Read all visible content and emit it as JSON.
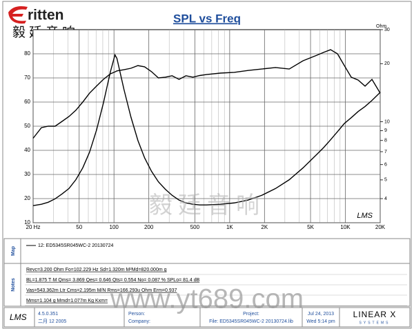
{
  "brand": {
    "name": "ritten",
    "chinese": "毅廷音响"
  },
  "chart_data": {
    "type": "line",
    "title": "SPL vs Freq",
    "y2_unit": "Ohm",
    "plot_logo": "LMS",
    "xscale": "log",
    "y2scale": "log",
    "grid": true,
    "xlim": [
      20,
      20000
    ],
    "xticks": [
      {
        "value": 20,
        "label": "20 Hz"
      },
      50,
      100,
      200,
      500,
      {
        "value": 1000,
        "label": "1K"
      },
      {
        "value": 2000,
        "label": "2K"
      },
      {
        "value": 5000,
        "label": "5K"
      },
      {
        "value": 10000,
        "label": "10K"
      },
      {
        "value": 20000,
        "label": "20K"
      }
    ],
    "xminor": [
      30,
      40,
      60,
      70,
      80,
      90,
      300,
      400,
      600,
      700,
      800,
      900,
      3000,
      4000,
      6000,
      7000,
      8000,
      9000
    ],
    "ylim": [
      10,
      90
    ],
    "yticks": [
      10,
      20,
      30,
      40,
      50,
      60,
      70,
      80
    ],
    "y2lim": [
      3,
      30
    ],
    "y2ticks": [
      4,
      5,
      6,
      7,
      8,
      9,
      10,
      20,
      30
    ],
    "x": [
      20,
      23.6,
      27,
      31,
      35.6,
      40.8,
      46.8,
      53.7,
      61.5,
      70.6,
      81,
      93,
      102,
      106,
      122,
      140,
      161,
      184,
      211,
      242,
      278,
      318,
      365,
      419,
      481,
      551,
      632,
      832,
      1095,
      1440,
      1893,
      2490,
      3274,
      4306,
      5666,
      6500,
      7450,
      8550,
      9800,
      11240,
      12900,
      14800,
      16980,
      20000
    ],
    "series": [
      {
        "color": "#000000",
        "values": [
          45,
          49.4,
          50,
          50,
          52,
          54,
          56.6,
          60,
          63.7,
          66.6,
          69.4,
          71.7,
          72.5,
          72.9,
          73.4,
          74,
          75.1,
          74.6,
          72.6,
          70,
          70.3,
          70.9,
          69.4,
          70.9,
          70.3,
          71,
          71.4,
          72,
          72.3,
          73.1,
          73.7,
          74.3,
          73.7,
          77.1,
          79.4,
          80.6,
          81.7,
          80,
          75.1,
          70.3,
          69.1,
          66.6,
          69.4,
          63.7
        ]
      },
      {
        "color": "#000000",
        "axis": "y2",
        "values": [
          3.68,
          3.74,
          3.83,
          3.99,
          4.23,
          4.51,
          5.01,
          5.77,
          6.96,
          9.04,
          12.5,
          18.1,
          22.2,
          21.3,
          14.7,
          10.6,
          8.0,
          6.5,
          5.54,
          4.89,
          4.47,
          4.16,
          3.93,
          3.8,
          3.74,
          3.71,
          3.71,
          3.74,
          3.8,
          3.93,
          4.16,
          4.51,
          5.01,
          5.77,
          6.78,
          7.36,
          8.07,
          8.89,
          9.8,
          10.5,
          11.3,
          12.0,
          12.9,
          14.2
        ]
      }
    ]
  },
  "watermark": {
    "chinese": "毅廷音响",
    "url": "www.yt689.com"
  },
  "map": {
    "label": "Map",
    "entry": "12: ED5345SR045WC-2  20130724"
  },
  "notes": {
    "label": "Notes",
    "lines": [
      "Revc=3.200 Ohm  Fo=102.229 Hz  Sd=1.320m M²Md=820.000m g",
      "BL=1.875 T·M  Qms= 3.869  Qes= 0.646  Qts= 0.554  No= 0.087 %  SPLo= 81.4 dB",
      "Vas=543.362m Ltr  Cms=2.195m M/N  Rms=166.293u Ohm  Erm=0.937",
      "Mms=1.104 g  Mmd=1.077m Kg  Kxm="
    ]
  },
  "footer": {
    "logo": "LMS",
    "version": "4.5.0.351",
    "date": "二月 12 2005",
    "person": "Person:",
    "company": "Company:",
    "project": "Project:",
    "file": "File: ED5345SR045WC-2  20130724.lib",
    "day": "Jul 24, 2013",
    "time": "Wed  5:14 pm",
    "maker": "LINEAR X",
    "maker_sub": "SYSTEMS"
  }
}
